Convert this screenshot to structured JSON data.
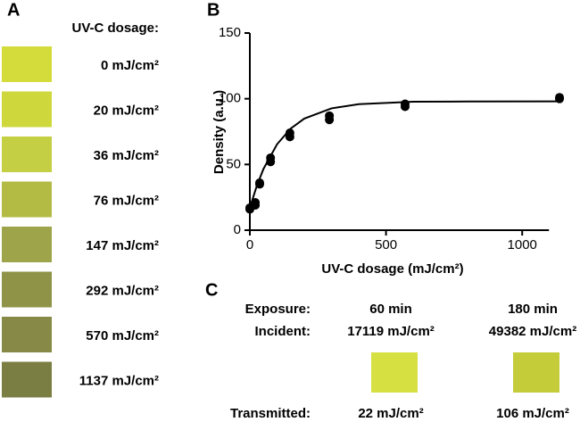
{
  "panel_a": {
    "letter": "A",
    "heading": "UV-C dosage:",
    "swatches": [
      {
        "label": "0 mJ/cm²",
        "color": "#d3dc3a"
      },
      {
        "label": "20 mJ/cm²",
        "color": "#ced83c"
      },
      {
        "label": "36 mJ/cm²",
        "color": "#c5cf44"
      },
      {
        "label": "76 mJ/cm²",
        "color": "#b3bb45"
      },
      {
        "label": "147 mJ/cm²",
        "color": "#9ea449"
      },
      {
        "label": "292 mJ/cm²",
        "color": "#8f9348"
      },
      {
        "label": "570 mJ/cm²",
        "color": "#868a46"
      },
      {
        "label": "1137 mJ/cm²",
        "color": "#7b7e43"
      }
    ]
  },
  "chart_data": {
    "type": "scatter",
    "letter": "B",
    "x_label": "UV-C dosage (mJ/cm²)",
    "y_label": "Density (a.u.)",
    "x": [
      0,
      0,
      20,
      20,
      36,
      36,
      76,
      76,
      147,
      147,
      292,
      292,
      570,
      570,
      1137,
      1137
    ],
    "values": [
      16,
      17,
      19,
      21,
      35,
      36,
      52,
      55,
      71,
      74,
      84,
      87,
      94,
      96,
      100,
      101
    ],
    "color": "#000000",
    "fit": {
      "x": [
        0,
        25,
        50,
        100,
        150,
        200,
        300,
        400,
        600,
        800,
        1137
      ],
      "values": [
        17,
        33.4,
        46.6,
        65.4,
        77.3,
        84.9,
        92.7,
        95.9,
        97.7,
        97.9,
        98
      ]
    },
    "xlim": [
      0,
      1150
    ],
    "ylim": [
      0,
      150
    ],
    "xticks": [
      0,
      500,
      1000
    ],
    "yticks": [
      0,
      50,
      100,
      150
    ]
  },
  "panel_c": {
    "letter": "C",
    "rows": [
      [
        "Exposure:",
        "60 min",
        "180 min"
      ],
      [
        "Incident:",
        "17119 mJ/cm²",
        "49382 mJ/cm²"
      ],
      [
        "Transmitted:",
        "22 mJ/cm²",
        "106 mJ/cm²"
      ]
    ],
    "swatch_colors": [
      "#d6e040",
      "#c4cc3a"
    ]
  }
}
